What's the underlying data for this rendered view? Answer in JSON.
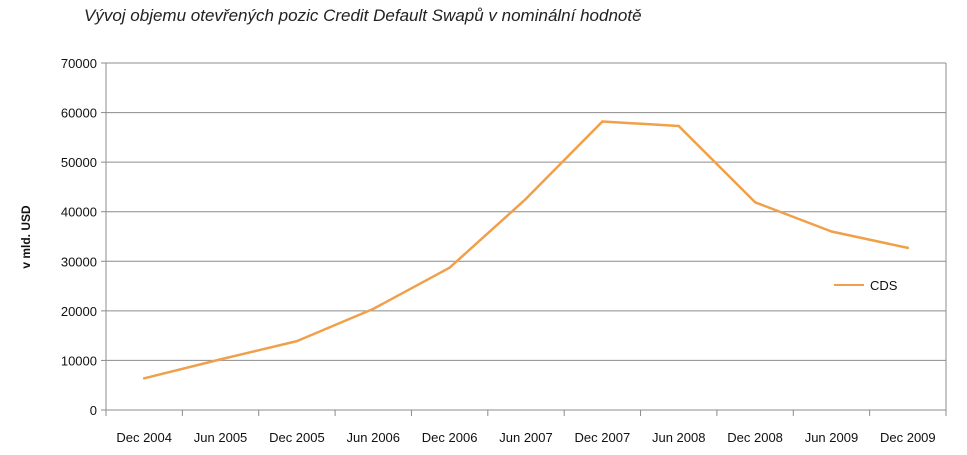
{
  "chart_data": {
    "type": "line",
    "title": "Vývoj objemu otevřených pozic Credit Default Swapů v nominální hodnotě",
    "xlabel": "",
    "ylabel": "v mld. USD",
    "categories": [
      "Dec 2004",
      "Jun 2005",
      "Dec 2005",
      "Jun 2006",
      "Dec 2006",
      "Jun 2007",
      "Dec 2007",
      "Jun 2008",
      "Dec 2008",
      "Jun 2009",
      "Dec 2009"
    ],
    "series": [
      {
        "name": "CDS",
        "color": "#f0a04a",
        "values": [
          6400,
          10200,
          13900,
          20400,
          28700,
          42600,
          58200,
          57300,
          41900,
          36000,
          32700
        ]
      }
    ],
    "ylim": [
      0,
      70000
    ],
    "yticks": [
      0,
      10000,
      20000,
      30000,
      40000,
      50000,
      60000,
      70000
    ],
    "grid": true,
    "legend_position": "right"
  }
}
